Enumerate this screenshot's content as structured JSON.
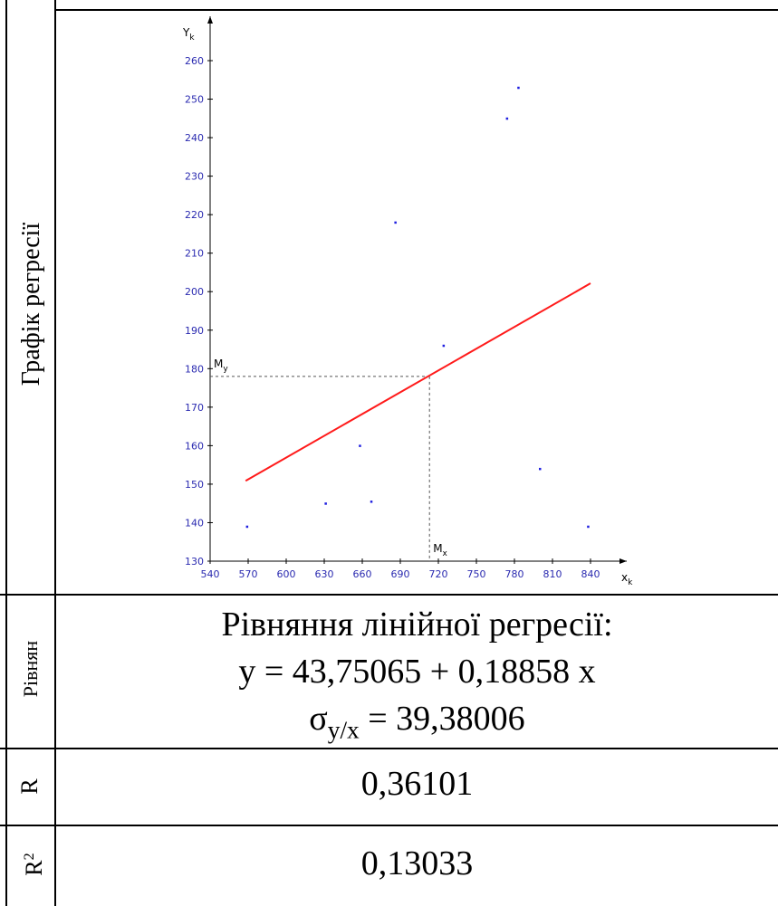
{
  "table": {
    "row1_label": "Графік регресії",
    "row2_label": "Рівнян",
    "row3_label": "R",
    "row4_label_base": "R",
    "row4_label_sup": "2",
    "equation_title": "Рівняння лінійної регресії:",
    "equation": "y = 43,75065 + 0,18858 x",
    "sigma_symbol": "σ",
    "sigma_sub": "y/x",
    "sigma_value": " =  39,38006",
    "r_value": "0,36101",
    "r2_value": "0,13033"
  },
  "colors": {
    "regression_line": "#ff1a1a",
    "points": "#2020e0",
    "tick_labels": "#2a2ab0",
    "axes": "#000000",
    "guide_lines": "#555555"
  },
  "chart_data": {
    "type": "scatter",
    "xlabel": "x",
    "xlabel_sub": "k",
    "ylabel": "Y",
    "ylabel_sub": "k",
    "xlim": [
      540,
      860
    ],
    "ylim": [
      130,
      265
    ],
    "x_ticks": [
      540,
      570,
      600,
      630,
      660,
      690,
      720,
      750,
      780,
      810,
      840
    ],
    "y_ticks": [
      130,
      140,
      150,
      160,
      170,
      180,
      190,
      200,
      210,
      220,
      230,
      240,
      250,
      260
    ],
    "points": [
      {
        "x": 569,
        "y": 139
      },
      {
        "x": 631,
        "y": 145
      },
      {
        "x": 658,
        "y": 160
      },
      {
        "x": 667,
        "y": 145.5
      },
      {
        "x": 686,
        "y": 218
      },
      {
        "x": 724,
        "y": 186
      },
      {
        "x": 774,
        "y": 245
      },
      {
        "x": 783,
        "y": 253
      },
      {
        "x": 800,
        "y": 154
      },
      {
        "x": 838,
        "y": 139
      }
    ],
    "regression": {
      "intercept": 43.75065,
      "slope": 0.18858,
      "x_from": 568,
      "x_to": 840
    },
    "mean_x": 713,
    "mean_y": 178,
    "mean_x_label": "M",
    "mean_x_label_sub": "x",
    "mean_y_label": "M",
    "mean_y_label_sub": "y",
    "grid": false
  }
}
